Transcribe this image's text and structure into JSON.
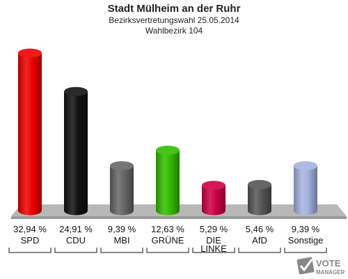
{
  "chart_data": {
    "type": "bar",
    "title": "Stadt Mülheim an der Ruhr",
    "subtitle": "Bezirksvertretungswahl 25.05.2014",
    "subtitle2": "Wahlbezirk 104",
    "categories": [
      "SPD",
      "CDU",
      "MBI",
      "GRÜNE",
      "DIE LINKE",
      "AfD",
      "Sonstige"
    ],
    "values": [
      32.94,
      24.91,
      9.39,
      12.63,
      5.29,
      5.46,
      9.39
    ],
    "value_labels": [
      "32,94 %",
      "24,91 %",
      "9,39 %",
      "12,63 %",
      "5,29 %",
      "5,46 %",
      "9,39 %"
    ],
    "colors": [
      "#ee0000",
      "#111111",
      "#666666",
      "#33bb00",
      "#cc0044",
      "#555555",
      "#a4b2e0"
    ],
    "ylim": [
      0,
      35
    ],
    "grid": false,
    "legend": "none"
  },
  "logo": {
    "line1": "VOTE",
    "line2": "MANAGER"
  }
}
